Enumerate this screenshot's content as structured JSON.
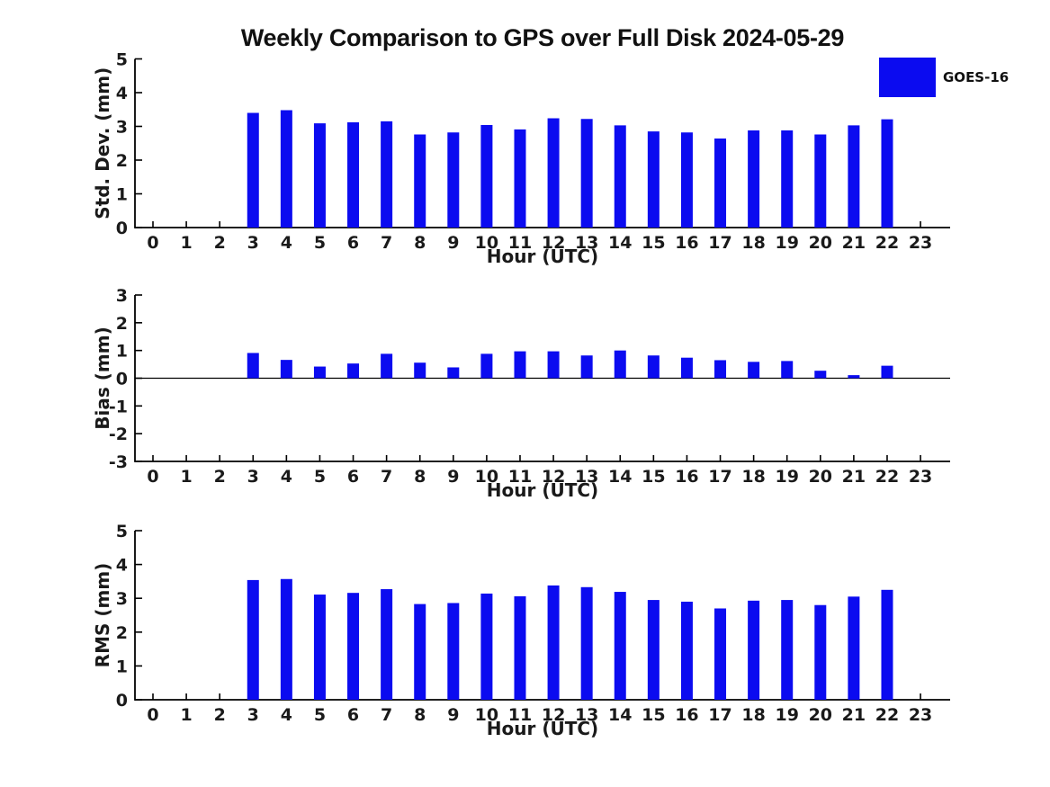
{
  "title": "Weekly Comparison to GPS over Full Disk 2024-05-29",
  "legend": {
    "label": "GOES-16",
    "color": "#0b0bf0"
  },
  "colors": {
    "bar": "#0b0bf0",
    "axis": "#000000",
    "text": "#1a1a1a"
  },
  "chart_data": [
    {
      "type": "bar",
      "name": "std-dev",
      "ylabel": "Std. Dev. (mm)",
      "xlabel": "Hour (UTC)",
      "ylim": [
        0,
        5
      ],
      "yticks": [
        0,
        1,
        2,
        3,
        4,
        5
      ],
      "grid": false,
      "legend_position": "upper-right-outside",
      "series_name": "GOES-16",
      "categories": [
        "0",
        "1",
        "2",
        "3",
        "4",
        "5",
        "6",
        "7",
        "8",
        "9",
        "10",
        "11",
        "12",
        "13",
        "14",
        "15",
        "16",
        "17",
        "18",
        "19",
        "20",
        "21",
        "22",
        "23"
      ],
      "values": [
        null,
        null,
        null,
        3.4,
        3.48,
        3.09,
        3.12,
        3.15,
        2.76,
        2.82,
        3.04,
        2.91,
        3.24,
        3.22,
        3.03,
        2.85,
        2.82,
        2.64,
        2.88,
        2.88,
        2.76,
        3.03,
        3.21,
        null
      ]
    },
    {
      "type": "bar",
      "name": "bias",
      "ylabel": "Bias (mm)",
      "xlabel": "Hour (UTC)",
      "ylim": [
        -3,
        3
      ],
      "yticks": [
        -3,
        -2,
        -1,
        0,
        1,
        2,
        3
      ],
      "zero_line": true,
      "grid": false,
      "series_name": "GOES-16",
      "categories": [
        "0",
        "1",
        "2",
        "3",
        "4",
        "5",
        "6",
        "7",
        "8",
        "9",
        "10",
        "11",
        "12",
        "13",
        "14",
        "15",
        "16",
        "17",
        "18",
        "19",
        "20",
        "21",
        "22",
        "23"
      ],
      "values": [
        null,
        null,
        null,
        0.91,
        0.66,
        0.42,
        0.53,
        0.88,
        0.56,
        0.39,
        0.88,
        0.97,
        0.97,
        0.82,
        1.0,
        0.82,
        0.74,
        0.65,
        0.59,
        0.62,
        0.27,
        0.11,
        0.45,
        null
      ]
    },
    {
      "type": "bar",
      "name": "rms",
      "ylabel": "RMS (mm)",
      "xlabel": "Hour (UTC)",
      "ylim": [
        0,
        5
      ],
      "yticks": [
        0,
        1,
        2,
        3,
        4,
        5
      ],
      "grid": false,
      "series_name": "GOES-16",
      "categories": [
        "0",
        "1",
        "2",
        "3",
        "4",
        "5",
        "6",
        "7",
        "8",
        "9",
        "10",
        "11",
        "12",
        "13",
        "14",
        "15",
        "16",
        "17",
        "18",
        "19",
        "20",
        "21",
        "22",
        "23"
      ],
      "values": [
        null,
        null,
        null,
        3.54,
        3.57,
        3.11,
        3.16,
        3.27,
        2.83,
        2.86,
        3.14,
        3.06,
        3.38,
        3.33,
        3.19,
        2.95,
        2.9,
        2.7,
        2.93,
        2.95,
        2.8,
        3.05,
        3.25,
        null
      ]
    }
  ]
}
